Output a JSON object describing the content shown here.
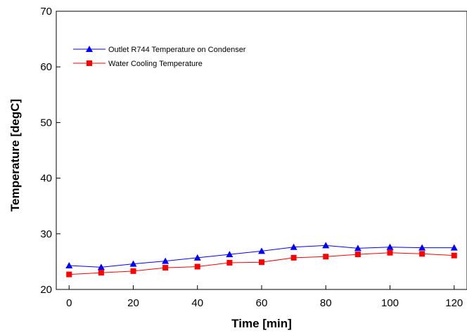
{
  "chart_data": {
    "type": "line",
    "xlabel": "Time [min]",
    "ylabel": "Temperature [degC]",
    "xlim": [
      -4,
      124
    ],
    "ylim": [
      20,
      70
    ],
    "xticks": [
      0,
      20,
      40,
      60,
      80,
      100,
      120
    ],
    "yticks": [
      20,
      30,
      40,
      50,
      60,
      70
    ],
    "grid": false,
    "legend_position": "top-left",
    "x": [
      0,
      10,
      20,
      30,
      40,
      50,
      60,
      70,
      80,
      90,
      100,
      110,
      120
    ],
    "series": [
      {
        "name": "Outlet R744 Temperature on Condenser",
        "marker": "triangle",
        "color": "#0000ff",
        "values": [
          24.3,
          24.0,
          24.6,
          25.1,
          25.7,
          26.3,
          26.9,
          27.6,
          27.9,
          27.4,
          27.6,
          27.5,
          27.5
        ]
      },
      {
        "name": "Water Cooling Temperature",
        "marker": "square",
        "color": "#ff0000",
        "values": [
          22.7,
          23.0,
          23.3,
          23.9,
          24.1,
          24.8,
          24.9,
          25.7,
          25.9,
          26.3,
          26.6,
          26.4,
          26.1
        ]
      }
    ]
  }
}
